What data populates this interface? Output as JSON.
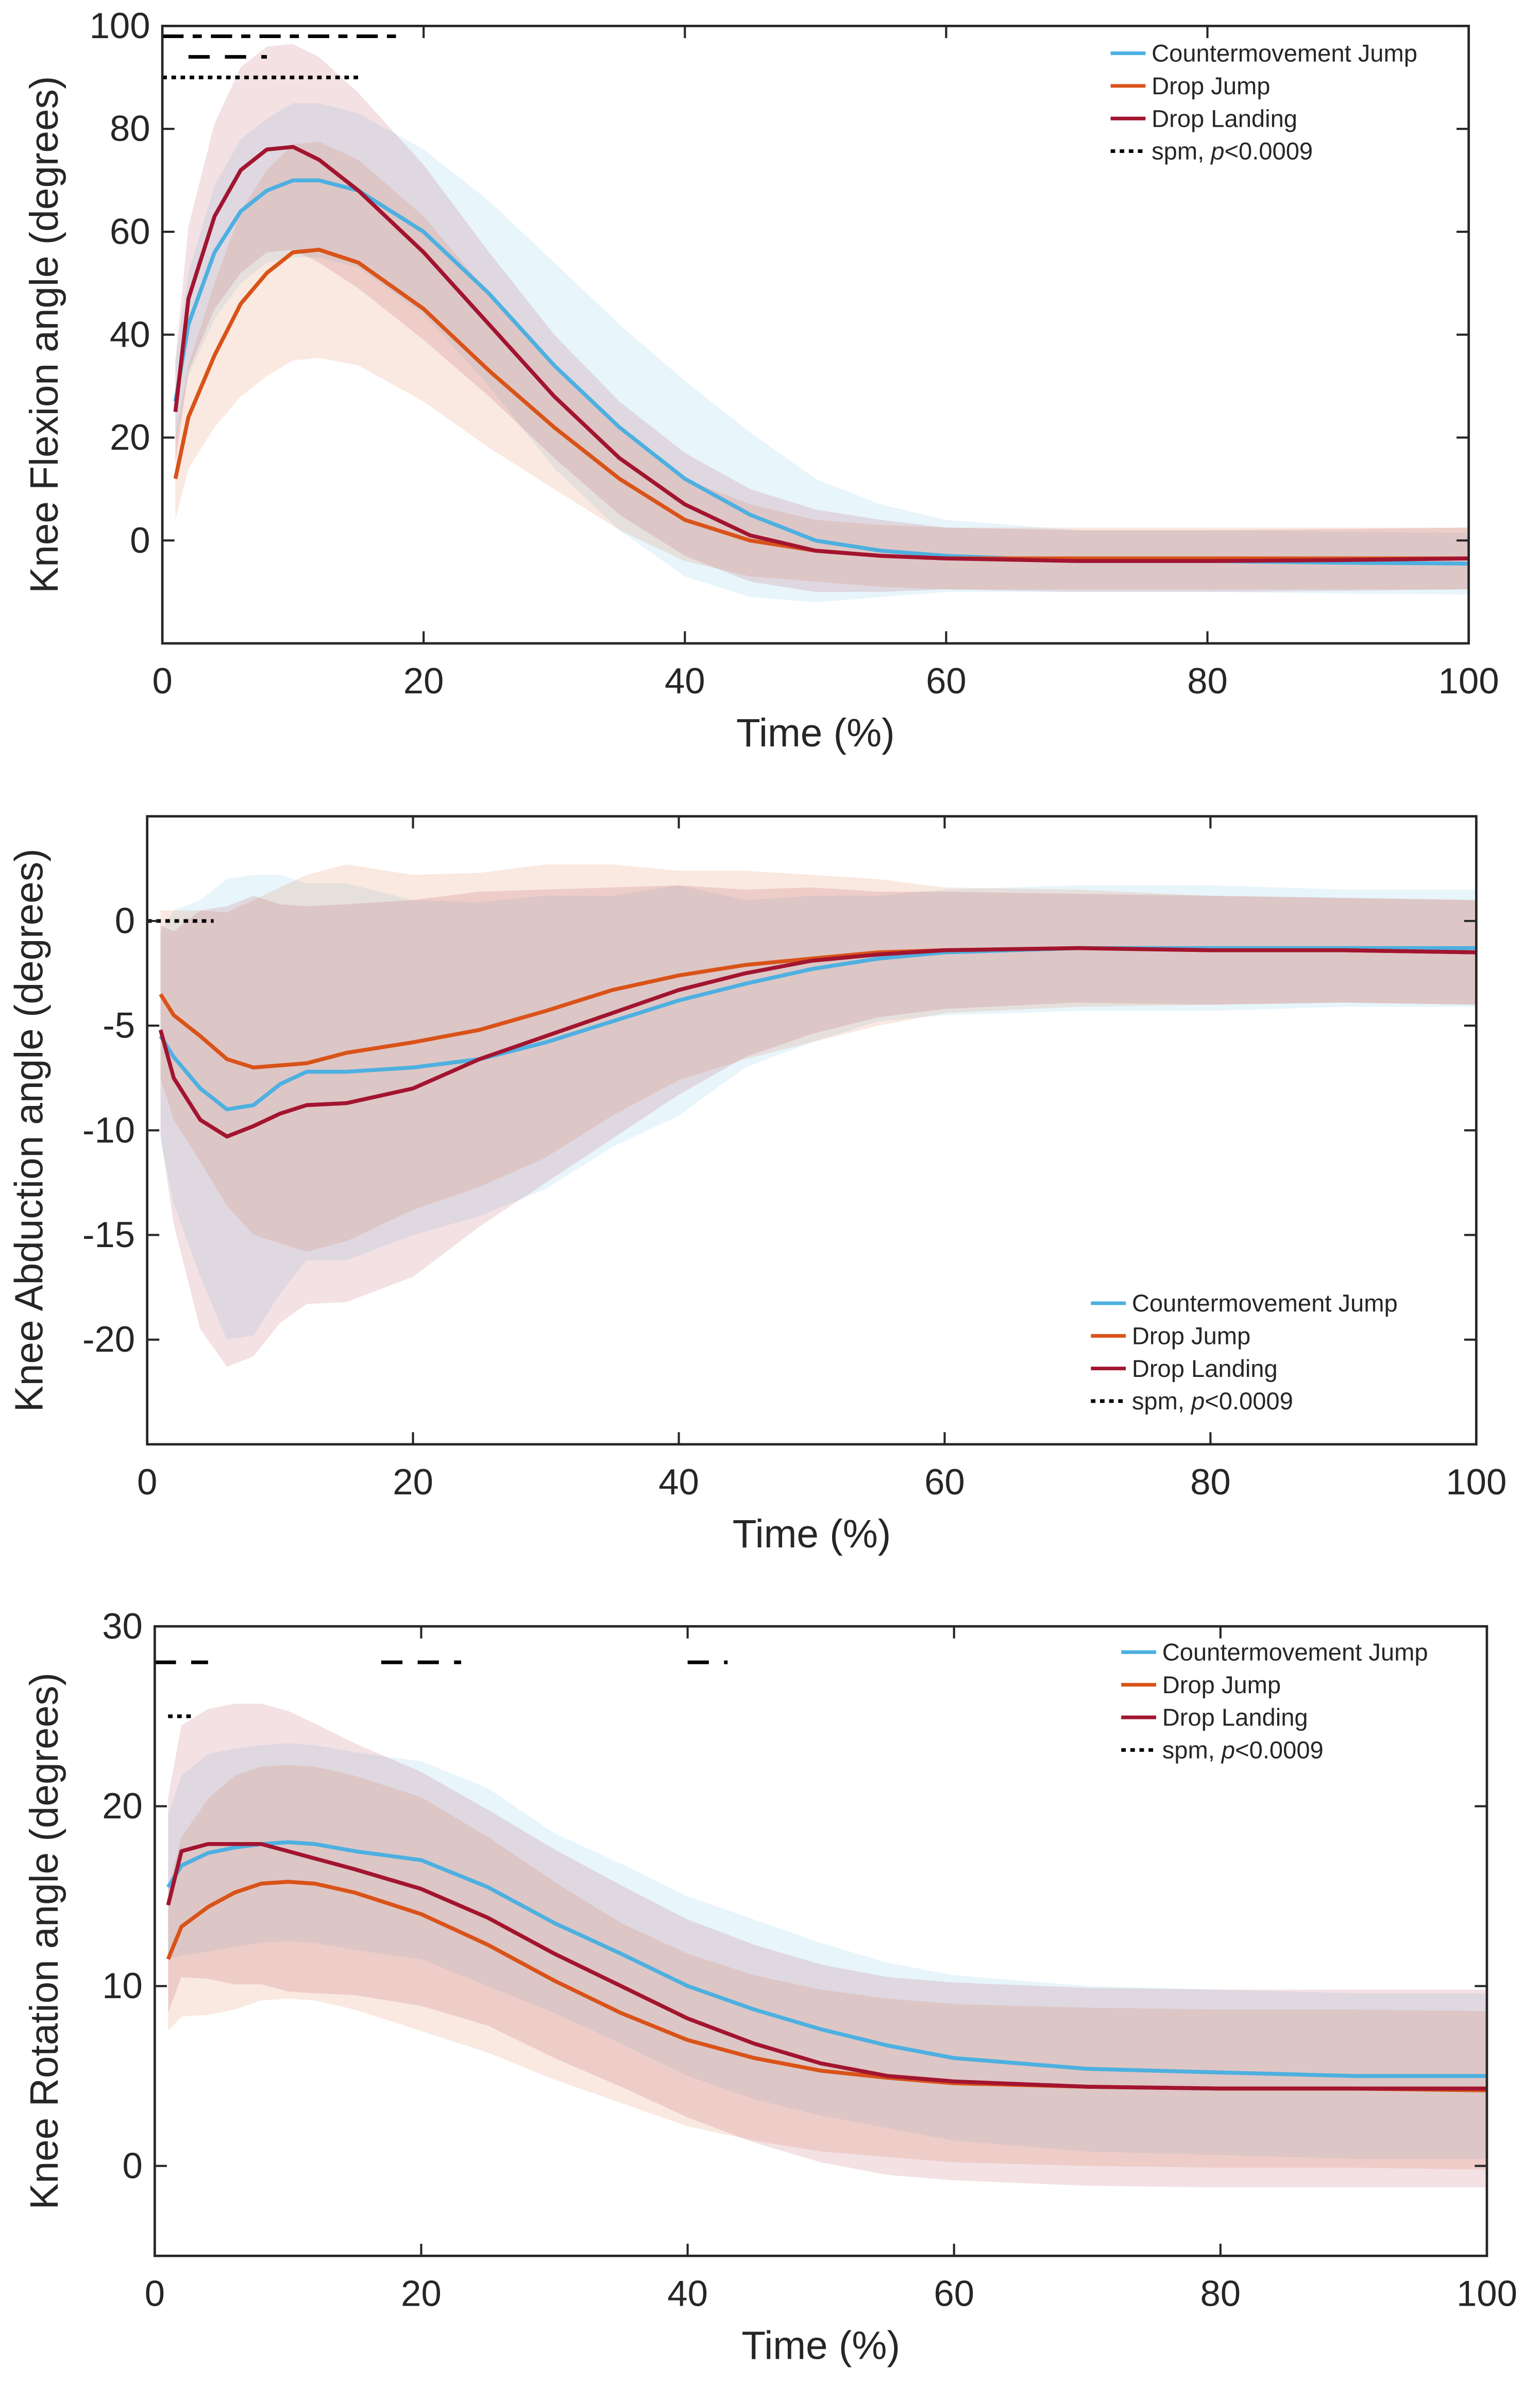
{
  "colors": {
    "cmj": "#4DB0E0",
    "dj": "#D95319",
    "dl": "#A2142F",
    "axis": "#262626"
  },
  "chart_data": [
    {
      "type": "line",
      "xlabel": "Time (%)",
      "ylabel": "Knee Flexion angle (degrees)",
      "xlim": [
        0,
        100
      ],
      "ylim": [
        -20,
        100
      ],
      "xticks": [
        0,
        20,
        40,
        60,
        80,
        100
      ],
      "yticks": [
        0,
        20,
        40,
        60,
        80,
        100
      ],
      "legend_placement": "top-right",
      "x": [
        1,
        2,
        4,
        6,
        8,
        10,
        12,
        15,
        20,
        25,
        30,
        35,
        40,
        45,
        50,
        55,
        60,
        70,
        80,
        90,
        100
      ],
      "series": [
        {
          "key": "cmj",
          "name": "Countermovement Jump",
          "mean": [
            27,
            42,
            56,
            64,
            68,
            70,
            70,
            68,
            60,
            48,
            34,
            22,
            12,
            5,
            0,
            -2,
            -3,
            -4,
            -4,
            -4.3,
            -4.5
          ],
          "sd": [
            8,
            10,
            13,
            14,
            14,
            15,
            15,
            15,
            16,
            18,
            20,
            20,
            19,
            16,
            12,
            9,
            7,
            6,
            6,
            6,
            6
          ]
        },
        {
          "key": "dj",
          "name": "Drop Jump",
          "mean": [
            12,
            24,
            36,
            46,
            52,
            56,
            56.5,
            54,
            45,
            33,
            22,
            12,
            4,
            0,
            -2,
            -3,
            -3.5,
            -3.5,
            -3.5,
            -3.5,
            -3.5
          ],
          "sd": [
            8,
            10,
            14,
            18,
            20,
            21,
            21,
            20,
            18,
            15,
            12,
            10,
            8,
            7,
            6,
            6,
            6,
            6,
            6,
            6,
            6
          ]
        },
        {
          "key": "dl",
          "name": "Drop Landing",
          "mean": [
            25,
            47,
            63,
            72,
            76,
            76.5,
            74,
            68,
            56,
            42,
            28,
            16,
            7,
            1,
            -2,
            -3,
            -3.5,
            -4,
            -4,
            -3.8,
            -3.5
          ],
          "sd": [
            10,
            14,
            18,
            20,
            20,
            20,
            20,
            19,
            17,
            14,
            12,
            11,
            10,
            9,
            8,
            7,
            6,
            6,
            6,
            6,
            6
          ]
        }
      ],
      "significance": [
        {
          "style": "dashdot",
          "y": 98,
          "x": [
            0,
            18
          ]
        },
        {
          "style": "dashed",
          "y": 94,
          "x": [
            2,
            8
          ]
        },
        {
          "style": "dotted",
          "y": 90,
          "x": [
            0,
            15
          ]
        }
      ],
      "spm_label": "spm, ",
      "p_label": "p",
      "p_value": "<0.0009"
    },
    {
      "type": "line",
      "xlabel": "Time (%)",
      "ylabel": "Knee Abduction angle (degrees)",
      "xlim": [
        0,
        100
      ],
      "ylim": [
        -25,
        5
      ],
      "xticks": [
        0,
        20,
        40,
        60,
        80,
        100
      ],
      "yticks": [
        -20,
        -15,
        -10,
        -5,
        0
      ],
      "legend_placement": "bottom-right",
      "x": [
        1,
        2,
        4,
        6,
        8,
        10,
        12,
        15,
        20,
        25,
        30,
        35,
        40,
        45,
        50,
        55,
        60,
        70,
        80,
        90,
        100
      ],
      "series": [
        {
          "key": "cmj",
          "name": "Countermovement Jump",
          "mean": [
            -5.5,
            -6.5,
            -8,
            -9,
            -8.8,
            -7.8,
            -7.2,
            -7.2,
            -7,
            -6.6,
            -5.8,
            -4.8,
            -3.8,
            -3,
            -2.3,
            -1.8,
            -1.5,
            -1.3,
            -1.3,
            -1.3,
            -1.3
          ],
          "sd": [
            5,
            7,
            9,
            11,
            11,
            10,
            9,
            9,
            8,
            7.5,
            7,
            6,
            5.5,
            4,
            3.5,
            3,
            3,
            3,
            3,
            2.8,
            2.8
          ]
        },
        {
          "key": "dj",
          "name": "Drop Jump",
          "mean": [
            -3.5,
            -4.5,
            -5.5,
            -6.6,
            -7,
            -6.9,
            -6.8,
            -6.3,
            -5.8,
            -5.2,
            -4.3,
            -3.3,
            -2.6,
            -2.1,
            -1.8,
            -1.5,
            -1.4,
            -1.3,
            -1.4,
            -1.4,
            -1.5
          ],
          "sd": [
            4,
            5,
            6,
            7,
            8,
            8.5,
            9,
            9,
            8,
            7.5,
            7,
            6,
            5,
            4.5,
            4,
            3.5,
            3,
            2.8,
            2.6,
            2.5,
            2.5
          ]
        },
        {
          "key": "dl",
          "name": "Drop Landing",
          "mean": [
            -5.2,
            -7.5,
            -9.5,
            -10.3,
            -9.8,
            -9.2,
            -8.8,
            -8.7,
            -8,
            -6.6,
            -5.5,
            -4.4,
            -3.3,
            -2.5,
            -1.9,
            -1.6,
            -1.4,
            -1.3,
            -1.4,
            -1.4,
            -1.5
          ],
          "sd": [
            5,
            7,
            10,
            11,
            11,
            10,
            9.5,
            9.5,
            9,
            8,
            7,
            6,
            5,
            4,
            3.5,
            3,
            2.8,
            2.6,
            2.6,
            2.5,
            2.5
          ]
        }
      ],
      "significance": [
        {
          "style": "dotted",
          "y": 0,
          "x": [
            0,
            5
          ]
        }
      ],
      "spm_label": "spm, ",
      "p_label": "p",
      "p_value": "<0.0009"
    },
    {
      "type": "line",
      "xlabel": "Time (%)",
      "ylabel": "Knee Rotation angle (degrees)",
      "xlim": [
        0,
        100
      ],
      "ylim": [
        -5,
        30
      ],
      "xticks": [
        0,
        20,
        40,
        60,
        80,
        100
      ],
      "yticks": [
        0,
        10,
        20,
        30
      ],
      "legend_placement": "top-right",
      "x": [
        1,
        2,
        4,
        6,
        8,
        10,
        12,
        15,
        20,
        25,
        30,
        35,
        40,
        45,
        50,
        55,
        60,
        70,
        80,
        90,
        100
      ],
      "series": [
        {
          "key": "cmj",
          "name": "Countermovement Jump",
          "mean": [
            15.5,
            16.7,
            17.4,
            17.7,
            17.9,
            18,
            17.9,
            17.5,
            17,
            15.5,
            13.5,
            11.8,
            10,
            8.7,
            7.6,
            6.7,
            6,
            5.4,
            5.2,
            5,
            5
          ],
          "sd": [
            4,
            5,
            5.5,
            5.5,
            5.5,
            5.5,
            5.5,
            5.5,
            5.5,
            5.5,
            5,
            5,
            5,
            5,
            4.8,
            4.6,
            4.6,
            4.6,
            4.6,
            4.6,
            4.6
          ]
        },
        {
          "key": "dj",
          "name": "Drop Jump",
          "mean": [
            11.5,
            13.3,
            14.4,
            15.2,
            15.7,
            15.8,
            15.7,
            15.2,
            14,
            12.3,
            10.3,
            8.5,
            7,
            6,
            5.3,
            4.9,
            4.6,
            4.4,
            4.3,
            4.3,
            4.2
          ],
          "sd": [
            4,
            5,
            6,
            6.5,
            6.5,
            6.5,
            6.5,
            6.5,
            6.5,
            6,
            5.5,
            5,
            4.8,
            4.6,
            4.5,
            4.4,
            4.4,
            4.4,
            4.4,
            4.4,
            4.4
          ]
        },
        {
          "key": "dl",
          "name": "Drop Landing",
          "mean": [
            14.5,
            17.5,
            17.9,
            17.9,
            17.9,
            17.5,
            17.1,
            16.5,
            15.4,
            13.8,
            11.8,
            10,
            8.2,
            6.8,
            5.7,
            5,
            4.7,
            4.4,
            4.3,
            4.3,
            4.3
          ],
          "sd": [
            6,
            7,
            7.5,
            7.8,
            7.8,
            7.8,
            7.5,
            7,
            6.5,
            6,
            5.8,
            5.6,
            5.5,
            5.5,
            5.5,
            5.5,
            5.5,
            5.5,
            5.5,
            5.5,
            5.5
          ]
        }
      ],
      "significance": [
        {
          "style": "dashed",
          "y": 28,
          "x": [
            0,
            4
          ]
        },
        {
          "style": "dashed",
          "y": 28,
          "x": [
            17,
            23
          ]
        },
        {
          "style": "dashed",
          "y": 28,
          "x": [
            40,
            43
          ]
        },
        {
          "style": "dotted",
          "y": 25,
          "x": [
            1,
            3
          ]
        }
      ],
      "spm_label": "spm, ",
      "p_label": "p",
      "p_value": "<0.0009"
    }
  ]
}
